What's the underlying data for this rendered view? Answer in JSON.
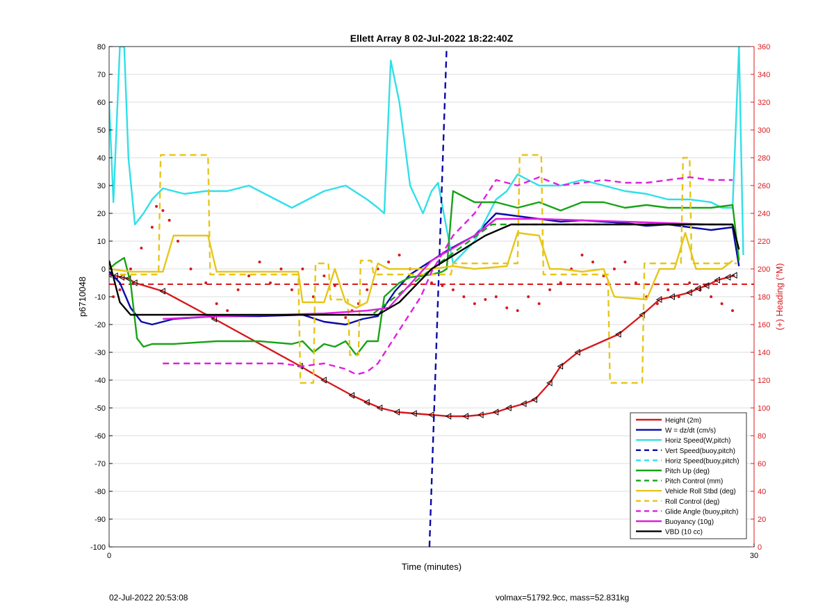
{
  "chart_data": {
    "type": "line",
    "title": "Ellett Array 8 02-Jul-2022 18:22:40Z",
    "xlabel": "Time (minutes)",
    "ylabel": "p6710048",
    "y2label": "(+) Heading (°M)",
    "xlim": [
      0,
      30
    ],
    "ylim": [
      -100,
      80
    ],
    "y2lim": [
      0,
      360
    ],
    "xticks": [
      "0",
      "30"
    ],
    "yticks": [
      80,
      70,
      60,
      50,
      40,
      30,
      20,
      10,
      0,
      -10,
      -20,
      -30,
      -40,
      -50,
      -60,
      -70,
      -80,
      -90,
      -100
    ],
    "y2ticks": [
      360,
      340,
      320,
      300,
      280,
      260,
      240,
      220,
      200,
      180,
      160,
      140,
      120,
      100,
      80,
      60,
      40,
      20,
      0
    ],
    "grid": true,
    "legend_position": "bottom-right",
    "colors": {
      "red": "#d7191c",
      "blue": "#0a0aa8",
      "cyan": "#2fe0e8",
      "green": "#17a317",
      "yellow": "#e6c619",
      "magenta": "#e01ee0",
      "black": "#000000",
      "right_axis": "#d7191c"
    },
    "series": [
      {
        "name": "Height (2m)",
        "color": "#d7191c",
        "style": "solid",
        "markers": "triangle",
        "x": [
          0.0,
          0.3,
          0.6,
          0.9,
          1.2,
          2.5,
          4.9,
          8.9,
          10.0,
          11.3,
          12.0,
          12.6,
          13.4,
          14.2,
          15.0,
          15.8,
          16.6,
          17.3,
          18.0,
          18.6,
          19.3,
          19.8,
          20.5,
          21.0,
          21.8,
          23.7,
          24.8,
          25.6,
          26.2,
          27.0,
          27.4,
          27.8,
          28.3,
          28.8,
          29.1
        ],
        "y": [
          -2,
          -2.5,
          -3,
          -3.5,
          -5,
          -8,
          -18,
          -35,
          -40,
          -45.5,
          -48,
          -50,
          -51.5,
          -52,
          -52.5,
          -53,
          -53,
          -52.5,
          -51.5,
          -50,
          -48.5,
          -47,
          -41,
          -35,
          -30,
          -23.5,
          -16.5,
          -11,
          -10,
          -8.5,
          -7,
          -6,
          -4,
          -3,
          -2.3
        ]
      },
      {
        "name": "W = dz/dt (cm/s)",
        "color": "#0a0aa8",
        "style": "solid",
        "x": [
          0.0,
          0.5,
          1.0,
          1.5,
          2.0,
          3.0,
          5.0,
          7.0,
          9.0,
          10.0,
          11.0,
          11.8,
          12.5,
          13.3,
          14.0,
          15.0,
          15.8,
          17.0,
          18.0,
          19.0,
          20.0,
          21.0,
          22.0,
          23.0,
          24.0,
          25.0,
          26.0,
          27.0,
          28.0,
          29.0,
          29.3
        ],
        "y": [
          -1,
          -5,
          -14,
          -19,
          -20,
          -18,
          -17,
          -17,
          -16.5,
          -19,
          -20,
          -18,
          -17,
          -8,
          -2,
          3,
          7,
          12,
          20,
          19,
          18,
          17,
          17.5,
          17,
          16.5,
          15.5,
          16,
          15,
          14,
          15,
          1
        ]
      },
      {
        "name": "Horiz Speed(W,pitch)",
        "color": "#2fe0e8",
        "style": "solid",
        "x": [
          0.0,
          0.2,
          0.5,
          0.7,
          0.9,
          1.2,
          1.6,
          2.0,
          2.5,
          3.5,
          4.5,
          5.5,
          6.5,
          7.5,
          8.5,
          9.0,
          10.0,
          11.0,
          12.0,
          12.5,
          12.8,
          13.1,
          13.5,
          14.0,
          14.3,
          14.6,
          15.0,
          15.3,
          16.0,
          17.0,
          18.0,
          18.5,
          19.0,
          20.0,
          21.0,
          22.0,
          23.0,
          24.0,
          25.0,
          26.0,
          27.0,
          28.0,
          28.5,
          29.0,
          29.3,
          29.5
        ],
        "y": [
          60,
          24,
          80,
          80,
          40,
          16,
          20,
          25,
          29,
          27,
          28,
          28,
          30,
          26,
          22,
          24,
          28,
          30,
          25,
          22,
          20,
          75,
          60,
          30,
          25,
          20,
          28,
          31,
          2,
          10,
          25,
          28,
          34,
          30,
          30,
          32,
          30,
          28,
          27,
          25,
          25,
          24,
          22,
          22,
          80,
          5
        ]
      },
      {
        "name": "Vert Speed(buoy,pitch)",
        "color": "#0a0aa8",
        "style": "dashed",
        "x": [
          14.9,
          15.7
        ],
        "y": [
          -100,
          80
        ]
      },
      {
        "name": "Horiz Speed(buoy,pitch)",
        "color": "#2fe0e8",
        "style": "dashed",
        "x": [],
        "y": []
      },
      {
        "name": "Pitch Up (deg)",
        "color": "#17a317",
        "style": "solid",
        "x": [
          0.0,
          0.3,
          0.7,
          1.0,
          1.3,
          1.6,
          2.0,
          3.0,
          5.0,
          7.0,
          8.5,
          9.0,
          9.5,
          10.0,
          10.5,
          11.0,
          11.5,
          12.0,
          12.5,
          12.8,
          13.5,
          14.0,
          15.0,
          15.5,
          15.7,
          16.0,
          17.0,
          18.0,
          19.0,
          20.0,
          21.0,
          22.0,
          23.0,
          24.0,
          25.0,
          26.0,
          27.0,
          28.0,
          29.0,
          29.3
        ],
        "y": [
          0,
          2,
          4,
          -5,
          -25,
          -28,
          -27,
          -27,
          -26,
          -26,
          -27,
          -26,
          -30,
          -27,
          -28,
          -26,
          -31,
          -26,
          -26,
          -10,
          -5,
          -3,
          -2,
          -1,
          0,
          28,
          24,
          24,
          22,
          24,
          21,
          24,
          24,
          22,
          23,
          22,
          22,
          22,
          23,
          3
        ]
      },
      {
        "name": "Pitch Control (mm)",
        "color": "#17a317",
        "style": "dashed",
        "x": [
          12.3,
          15.0,
          17.8,
          29.0
        ],
        "y": [
          -16,
          0,
          16,
          16
        ]
      },
      {
        "name": "Vehicle Roll Stbd (deg)",
        "color": "#e6c619",
        "style": "solid",
        "x": [
          0.0,
          1.0,
          2.5,
          3.0,
          4.6,
          5.0,
          7.0,
          8.8,
          9.0,
          10.0,
          10.5,
          11.0,
          11.5,
          12.0,
          12.5,
          13.0,
          15.0,
          16.0,
          17.0,
          18.5,
          19.0,
          20.0,
          20.5,
          21.0,
          22.0,
          23.0,
          23.5,
          25.0,
          25.6,
          26.3,
          26.8,
          27.3,
          28.5,
          29.0
        ],
        "y": [
          0,
          -1,
          -1,
          12,
          12,
          -1,
          -1,
          -1,
          -12,
          -12,
          0,
          -12,
          -14,
          -12,
          2,
          0,
          0,
          1,
          0,
          1,
          13,
          12,
          0,
          0,
          -1,
          0,
          -10,
          -11,
          0,
          0,
          13,
          0,
          0,
          3
        ]
      },
      {
        "name": "Roll Control (deg)",
        "color": "#e6c619",
        "style": "dashed",
        "x": [
          0.5,
          1.5,
          2.3,
          2.4,
          4.6,
          4.7,
          7.0,
          8.8,
          8.9,
          9.5,
          9.6,
          10.2,
          10.3,
          11.1,
          11.2,
          11.6,
          11.7,
          12.2,
          12.3,
          15.9,
          16.0,
          19.0,
          19.1,
          20.1,
          20.2,
          23.2,
          23.3,
          24.8,
          24.9,
          26.6,
          26.7,
          27.0,
          27.1,
          28.8,
          29.2
        ],
        "y": [
          -2,
          -2,
          -2,
          41,
          41,
          -2,
          -2,
          -2,
          -41,
          -41,
          2,
          2,
          -11,
          -11,
          -31,
          -31,
          3,
          3,
          -2,
          -2,
          2,
          2,
          41,
          41,
          -2,
          -2,
          -41,
          -41,
          2,
          2,
          40,
          40,
          2,
          2,
          2
        ]
      },
      {
        "name": "Glide Angle (buoy,pitch)",
        "color": "#e01ee0",
        "style": "dashed",
        "x": [
          2.5,
          4.0,
          6.0,
          7.0,
          8.0,
          9.0,
          10.0,
          11.0,
          11.5,
          12.0,
          12.5,
          13.0,
          14.5,
          15.0,
          16.0,
          17.0,
          18.0,
          19.0,
          20.0,
          21.0,
          22.0,
          23.0,
          24.0,
          25.0,
          26.0,
          27.0,
          28.0,
          29.0
        ],
        "y": [
          -34,
          -34,
          -34,
          -34,
          -34,
          -35,
          -34,
          -36,
          -38,
          -37,
          -34,
          -28,
          -10,
          -1,
          12,
          20,
          32,
          30,
          33,
          30,
          31,
          32,
          31,
          31,
          32,
          33,
          32,
          32
        ]
      },
      {
        "name": "Buoyancy (10g)",
        "color": "#e01ee0",
        "style": "solid",
        "x": [
          2.5,
          5.0,
          8.0,
          10.0,
          12.0,
          13.0,
          15.0,
          17.0,
          18.0,
          20.0,
          24.0,
          28.0,
          29.0
        ],
        "y": [
          -18,
          -17,
          -16.5,
          -16,
          -15,
          -14,
          3,
          12,
          18,
          18,
          17,
          16,
          16
        ]
      },
      {
        "name": "VBD (10 cc)",
        "color": "#000000",
        "style": "solid",
        "x": [
          0.0,
          0.5,
          1.0,
          8.0,
          12.5,
          13.5,
          15.0,
          17.5,
          18.7,
          29.0,
          29.3
        ],
        "y": [
          3,
          -12,
          -16.5,
          -16.5,
          -16.5,
          -12,
          0,
          12,
          16,
          16,
          7
        ]
      }
    ],
    "heading_series": {
      "color": "#d7191c",
      "style": "dotted",
      "x": [
        0.2,
        0.5,
        1.0,
        1.5,
        2.0,
        2.2,
        2.5,
        2.8,
        3.2,
        3.8,
        4.5,
        5.0,
        5.5,
        6.0,
        6.5,
        7.0,
        7.5,
        8.0,
        8.5,
        9.0,
        9.5,
        10.0,
        10.5,
        11.0,
        11.3,
        11.6,
        12.0,
        12.5,
        13.0,
        13.5,
        14.0,
        14.5,
        15.0,
        15.5,
        16.0,
        16.5,
        17.0,
        17.5,
        18.0,
        18.5,
        19.0,
        19.5,
        20.0,
        20.5,
        21.0,
        21.5,
        22.0,
        22.5,
        23.0,
        23.5,
        24.0,
        24.5,
        25.0,
        25.5,
        26.0,
        26.5,
        27.0,
        27.5,
        28.0,
        28.5,
        29.0
      ],
      "y": [
        180,
        185,
        200,
        215,
        230,
        245,
        242,
        235,
        220,
        200,
        190,
        175,
        170,
        185,
        195,
        205,
        190,
        200,
        185,
        200,
        180,
        195,
        188,
        165,
        170,
        175,
        185,
        200,
        205,
        210,
        200,
        195,
        190,
        188,
        185,
        180,
        175,
        178,
        180,
        172,
        170,
        180,
        175,
        185,
        190,
        200,
        210,
        205,
        195,
        200,
        205,
        190,
        180,
        175,
        185,
        180,
        190,
        185,
        180,
        175,
        170
      ]
    },
    "heading_reference": {
      "color": "#d7191c",
      "style": "dashed",
      "y2": 189
    }
  },
  "footer": {
    "timestamp": "02-Jul-2022 20:53:08",
    "stats": "volmax=51792.9cc, mass=52.831kg"
  }
}
